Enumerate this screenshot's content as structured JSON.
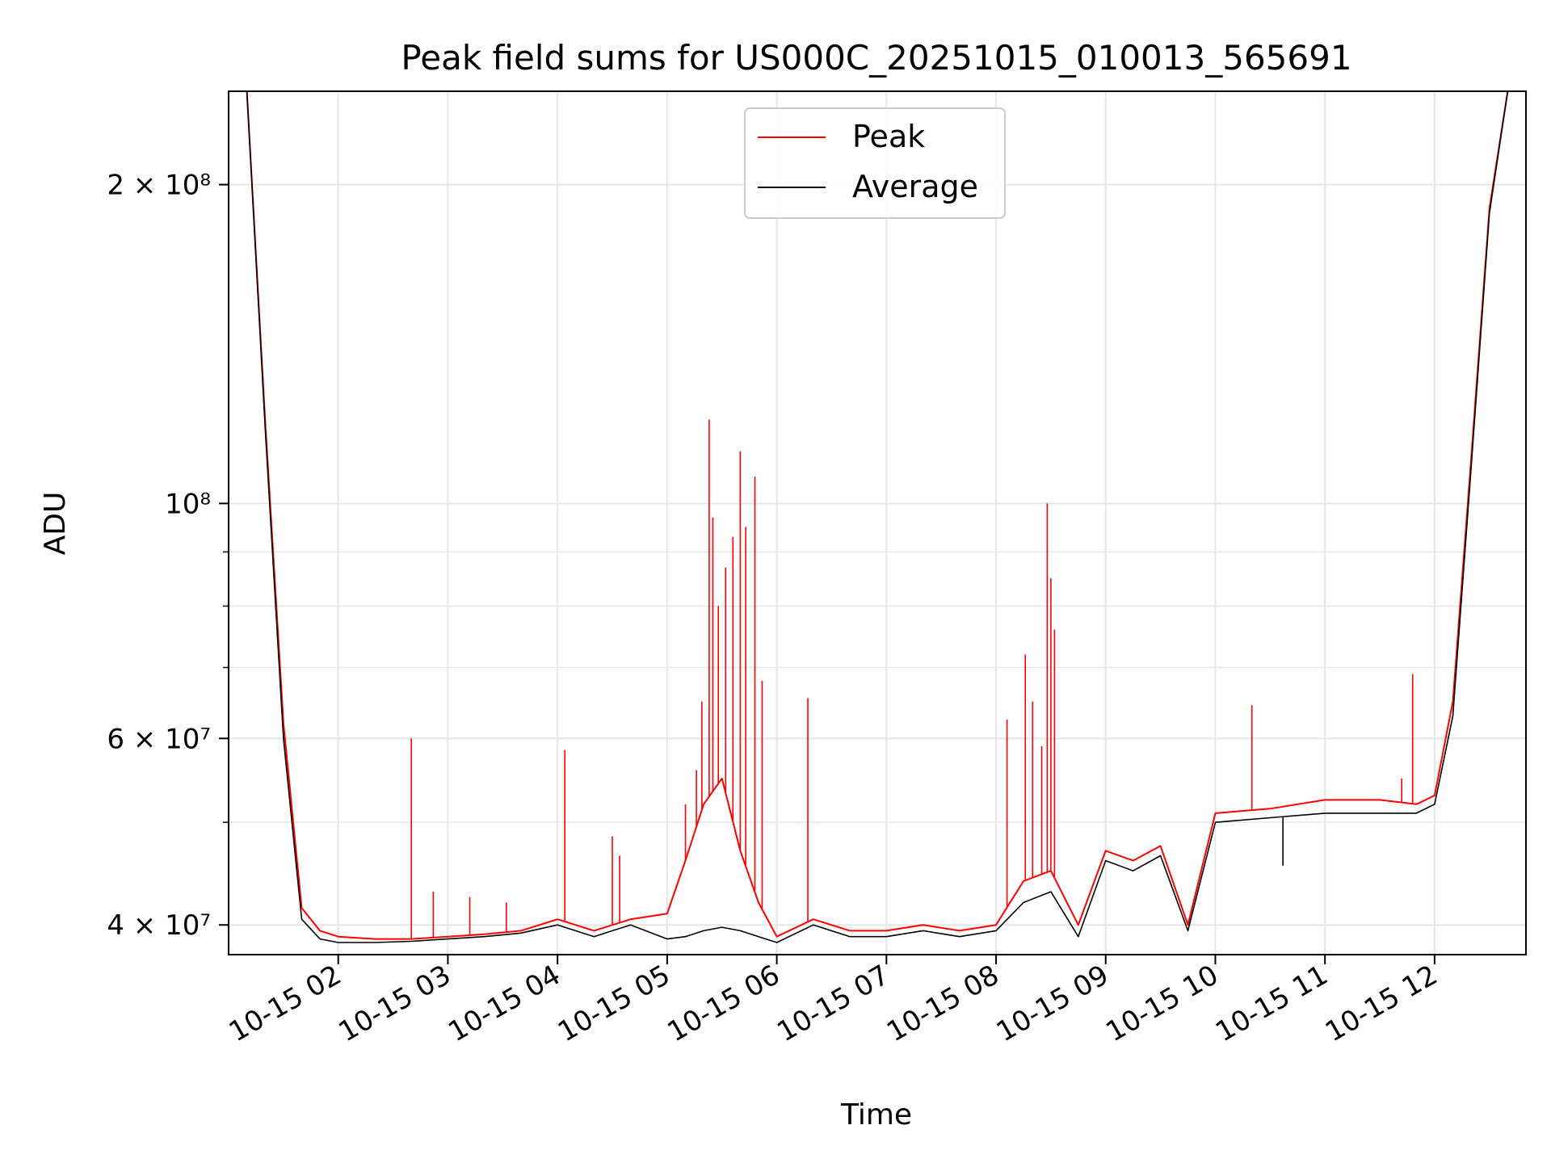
{
  "chart_data": {
    "type": "line",
    "title": "Peak field sums for US000C_20251015_010013_565691",
    "xlabel": "Time",
    "ylabel": "ADU",
    "yscale": "log",
    "grid": true,
    "legend_placement": "top-center",
    "colors": {
      "peak": "#ff0000",
      "average": "#000000",
      "grid": "#e6e6e6"
    },
    "x_range": [
      "10-15 01:00",
      "10-15 12:50"
    ],
    "ylim": [
      37500000,
      245000000
    ],
    "x_ticks": [
      "10-15 02",
      "10-15 03",
      "10-15 04",
      "10-15 05",
      "10-15 06",
      "10-15 07",
      "10-15 08",
      "10-15 09",
      "10-15 10",
      "10-15 11",
      "10-15 12"
    ],
    "y_ticks_major": [
      {
        "value": 40000000,
        "label": "4 × 10⁷"
      },
      {
        "value": 60000000,
        "label": "6 × 10⁷"
      },
      {
        "value": 100000000,
        "label": "10⁸"
      },
      {
        "value": 200000000,
        "label": "2 × 10⁸"
      }
    ],
    "y_ticks_minor": [
      50000000,
      70000000,
      80000000,
      90000000
    ],
    "series": [
      {
        "name": "Peak",
        "color": "#ff0000",
        "x": [
          "10-15 01:10",
          "10-15 01:20",
          "10-15 01:30",
          "10-15 01:40",
          "10-15 01:50",
          "10-15 02:00",
          "10-15 02:20",
          "10-15 02:40",
          "10-15 03:00",
          "10-15 03:20",
          "10-15 03:40",
          "10-15 04:00",
          "10-15 04:20",
          "10-15 04:40",
          "10-15 05:00",
          "10-15 05:10",
          "10-15 05:20",
          "10-15 05:30",
          "10-15 05:40",
          "10-15 05:50",
          "10-15 06:00",
          "10-15 06:20",
          "10-15 06:40",
          "10-15 07:00",
          "10-15 07:20",
          "10-15 07:40",
          "10-15 08:00",
          "10-15 08:15",
          "10-15 08:30",
          "10-15 08:45",
          "10-15 09:00",
          "10-15 09:15",
          "10-15 09:30",
          "10-15 09:45",
          "10-15 10:00",
          "10-15 10:30",
          "10-15 11:00",
          "10-15 11:30",
          "10-15 11:50",
          "10-15 12:00",
          "10-15 12:10",
          "10-15 12:20",
          "10-15 12:30",
          "10-15 12:40"
        ],
        "values": [
          245000000,
          120000000,
          62000000,
          41500000,
          39500000,
          39000000,
          38800000,
          38800000,
          39000000,
          39200000,
          39500000,
          40500000,
          39500000,
          40500000,
          41000000,
          46000000,
          52000000,
          55000000,
          47000000,
          42000000,
          39000000,
          40500000,
          39500000,
          39500000,
          40000000,
          39500000,
          40000000,
          44000000,
          45000000,
          40000000,
          47000000,
          46000000,
          47500000,
          40000000,
          51000000,
          51500000,
          52500000,
          52500000,
          52000000,
          53000000,
          65000000,
          110000000,
          190000000,
          245000000
        ]
      },
      {
        "name": "Average",
        "color": "#000000",
        "x": [
          "10-15 01:10",
          "10-15 01:20",
          "10-15 01:30",
          "10-15 01:40",
          "10-15 01:50",
          "10-15 02:00",
          "10-15 02:20",
          "10-15 02:40",
          "10-15 03:00",
          "10-15 03:20",
          "10-15 03:40",
          "10-15 04:00",
          "10-15 04:20",
          "10-15 04:40",
          "10-15 05:00",
          "10-15 05:10",
          "10-15 05:20",
          "10-15 05:30",
          "10-15 05:40",
          "10-15 05:50",
          "10-15 06:00",
          "10-15 06:20",
          "10-15 06:40",
          "10-15 07:00",
          "10-15 07:20",
          "10-15 07:40",
          "10-15 08:00",
          "10-15 08:15",
          "10-15 08:30",
          "10-15 08:45",
          "10-15 09:00",
          "10-15 09:15",
          "10-15 09:30",
          "10-15 09:45",
          "10-15 10:00",
          "10-15 10:30",
          "10-15 11:00",
          "10-15 11:30",
          "10-15 11:50",
          "10-15 12:00",
          "10-15 12:10",
          "10-15 12:20",
          "10-15 12:30",
          "10-15 12:40"
        ],
        "values": [
          245000000,
          118000000,
          60000000,
          40500000,
          38800000,
          38500000,
          38500000,
          38600000,
          38800000,
          39000000,
          39300000,
          40000000,
          39000000,
          40000000,
          38800000,
          39000000,
          39500000,
          39800000,
          39500000,
          39000000,
          38500000,
          40000000,
          39000000,
          39000000,
          39500000,
          39000000,
          39500000,
          42000000,
          43000000,
          39000000,
          46000000,
          45000000,
          46500000,
          39500000,
          50000000,
          50500000,
          51000000,
          51000000,
          51000000,
          52000000,
          63000000,
          108000000,
          188000000,
          245000000
        ]
      }
    ],
    "spikes": {
      "Peak": [
        {
          "x": "10-15 02:40",
          "value": 60000000
        },
        {
          "x": "10-15 02:52",
          "value": 43000000
        },
        {
          "x": "10-15 03:12",
          "value": 42500000
        },
        {
          "x": "10-15 03:32",
          "value": 42000000
        },
        {
          "x": "10-15 04:04",
          "value": 58500000
        },
        {
          "x": "10-15 04:30",
          "value": 48500000
        },
        {
          "x": "10-15 04:34",
          "value": 46500000
        },
        {
          "x": "10-15 05:10",
          "value": 52000000
        },
        {
          "x": "10-15 05:16",
          "value": 56000000
        },
        {
          "x": "10-15 05:19",
          "value": 65000000
        },
        {
          "x": "10-15 05:23",
          "value": 120000000
        },
        {
          "x": "10-15 05:25",
          "value": 97000000
        },
        {
          "x": "10-15 05:28",
          "value": 80000000
        },
        {
          "x": "10-15 05:32",
          "value": 87000000
        },
        {
          "x": "10-15 05:36",
          "value": 93000000
        },
        {
          "x": "10-15 05:40",
          "value": 112000000
        },
        {
          "x": "10-15 05:43",
          "value": 95000000
        },
        {
          "x": "10-15 05:48",
          "value": 106000000
        },
        {
          "x": "10-15 05:52",
          "value": 68000000
        },
        {
          "x": "10-15 06:17",
          "value": 65500000
        },
        {
          "x": "10-15 08:06",
          "value": 62500000
        },
        {
          "x": "10-15 08:16",
          "value": 72000000
        },
        {
          "x": "10-15 08:20",
          "value": 65000000
        },
        {
          "x": "10-15 08:25",
          "value": 59000000
        },
        {
          "x": "10-15 08:28",
          "value": 100000000
        },
        {
          "x": "10-15 08:30",
          "value": 85000000
        },
        {
          "x": "10-15 08:32",
          "value": 76000000
        },
        {
          "x": "10-15 10:20",
          "value": 64500000
        },
        {
          "x": "10-15 11:42",
          "value": 55000000
        },
        {
          "x": "10-15 11:48",
          "value": 69000000
        }
      ],
      "Average": [
        {
          "x": "10-15 10:37",
          "value": 45500000
        }
      ]
    }
  }
}
